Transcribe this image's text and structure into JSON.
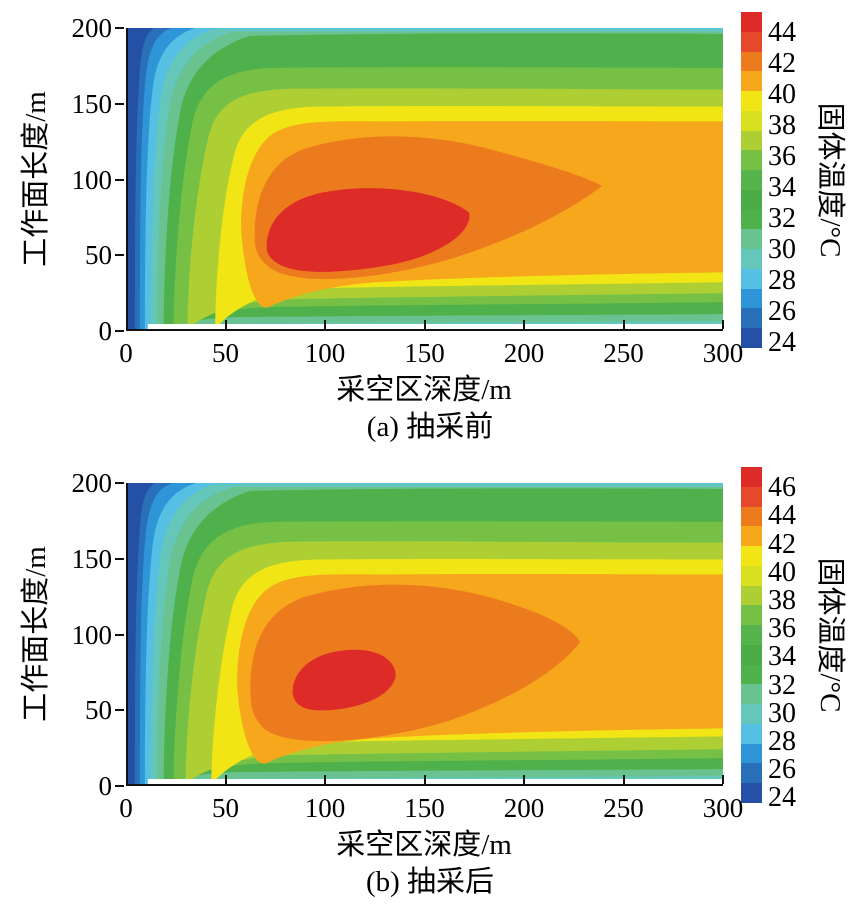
{
  "palette": [
    "#2450a5",
    "#2a70b8",
    "#2e96d8",
    "#55c0e4",
    "#65c6ba",
    "#68c390",
    "#4fb14b",
    "#4aab47",
    "#56b44c",
    "#77c046",
    "#aecf33",
    "#d8e020",
    "#f2e515",
    "#f6a71c",
    "#ec7b1e",
    "#e5482b",
    "#dd2b28"
  ],
  "figures": [
    {
      "caption": "(a) 抽采前",
      "xlabel": "采空区深度/m",
      "ylabel": "工作面长度/m",
      "colorbar_label": "固体温度/°C",
      "x_ticks": [
        "0",
        "50",
        "100",
        "150",
        "200",
        "250",
        "300"
      ],
      "y_ticks": [
        "200",
        "150",
        "100",
        "50",
        "0"
      ],
      "colorbar_ticks": [
        "44",
        "42",
        "40",
        "38",
        "36",
        "34",
        "32",
        "30",
        "28",
        "26",
        "24"
      ]
    },
    {
      "caption": "(b) 抽采后",
      "xlabel": "采空区深度/m",
      "ylabel": "工作面长度/m",
      "colorbar_label": "固体温度/°C",
      "x_ticks": [
        "0",
        "50",
        "100",
        "150",
        "200",
        "250",
        "300"
      ],
      "y_ticks": [
        "200",
        "150",
        "100",
        "50",
        "0"
      ],
      "colorbar_ticks": [
        "46",
        "44",
        "42",
        "40",
        "38",
        "36",
        "34",
        "32",
        "30",
        "28",
        "26",
        "24"
      ]
    }
  ],
  "chart_data": [
    {
      "type": "filled_contour",
      "title": "(a) 抽采前",
      "xlabel": "采空区深度/m",
      "ylabel": "工作面长度/m",
      "x_range": [
        0,
        300
      ],
      "y_range": [
        0,
        200
      ],
      "colorbar_label": "固体温度/°C",
      "colorbar_range": [
        24,
        44
      ],
      "colorbar_tick_step": 2,
      "legend_position": "right",
      "grid": false,
      "peak": {
        "x_m": 105,
        "y_m": 62,
        "value_c": 44,
        "note": "red core ≈ x 70–172 m, y 40–92 m; ≥42 °C orange lobe tapers to a point near x≈240 m, y≈95 m"
      },
      "edges": {
        "left_edge_c": 24,
        "bottom_edge_c": 27,
        "top_edge_c": 30,
        "right_edge_mid_c": 41
      },
      "structure": "cold blue bands hug the left wall and thin strips along top/bottom walls; broad 40–42 °C amber zone fills the right half between y≈35–135 m"
    },
    {
      "type": "filled_contour",
      "title": "(b) 抽采后",
      "xlabel": "采空区深度/m",
      "ylabel": "工作面长度/m",
      "x_range": [
        0,
        300
      ],
      "y_range": [
        0,
        200
      ],
      "colorbar_label": "固体温度/°C",
      "colorbar_range": [
        24,
        46
      ],
      "colorbar_tick_step": 2,
      "legend_position": "right",
      "grid": false,
      "peak": {
        "x_m": 105,
        "y_m": 66,
        "value_c": 46,
        "note": "smaller red core ≈ x 80–135 m, y 45–88 m; ≥44 °C orange lobe blunter, ending near x≈225 m"
      },
      "edges": {
        "left_edge_c": 24,
        "bottom_edge_c": 27,
        "top_edge_c": 30,
        "right_edge_mid_c": 41
      },
      "structure": "same pattern as (a) with hotter scale to 46 °C; amber 40–42 °C zone reaches right wall between y≈30–140 m"
    }
  ]
}
